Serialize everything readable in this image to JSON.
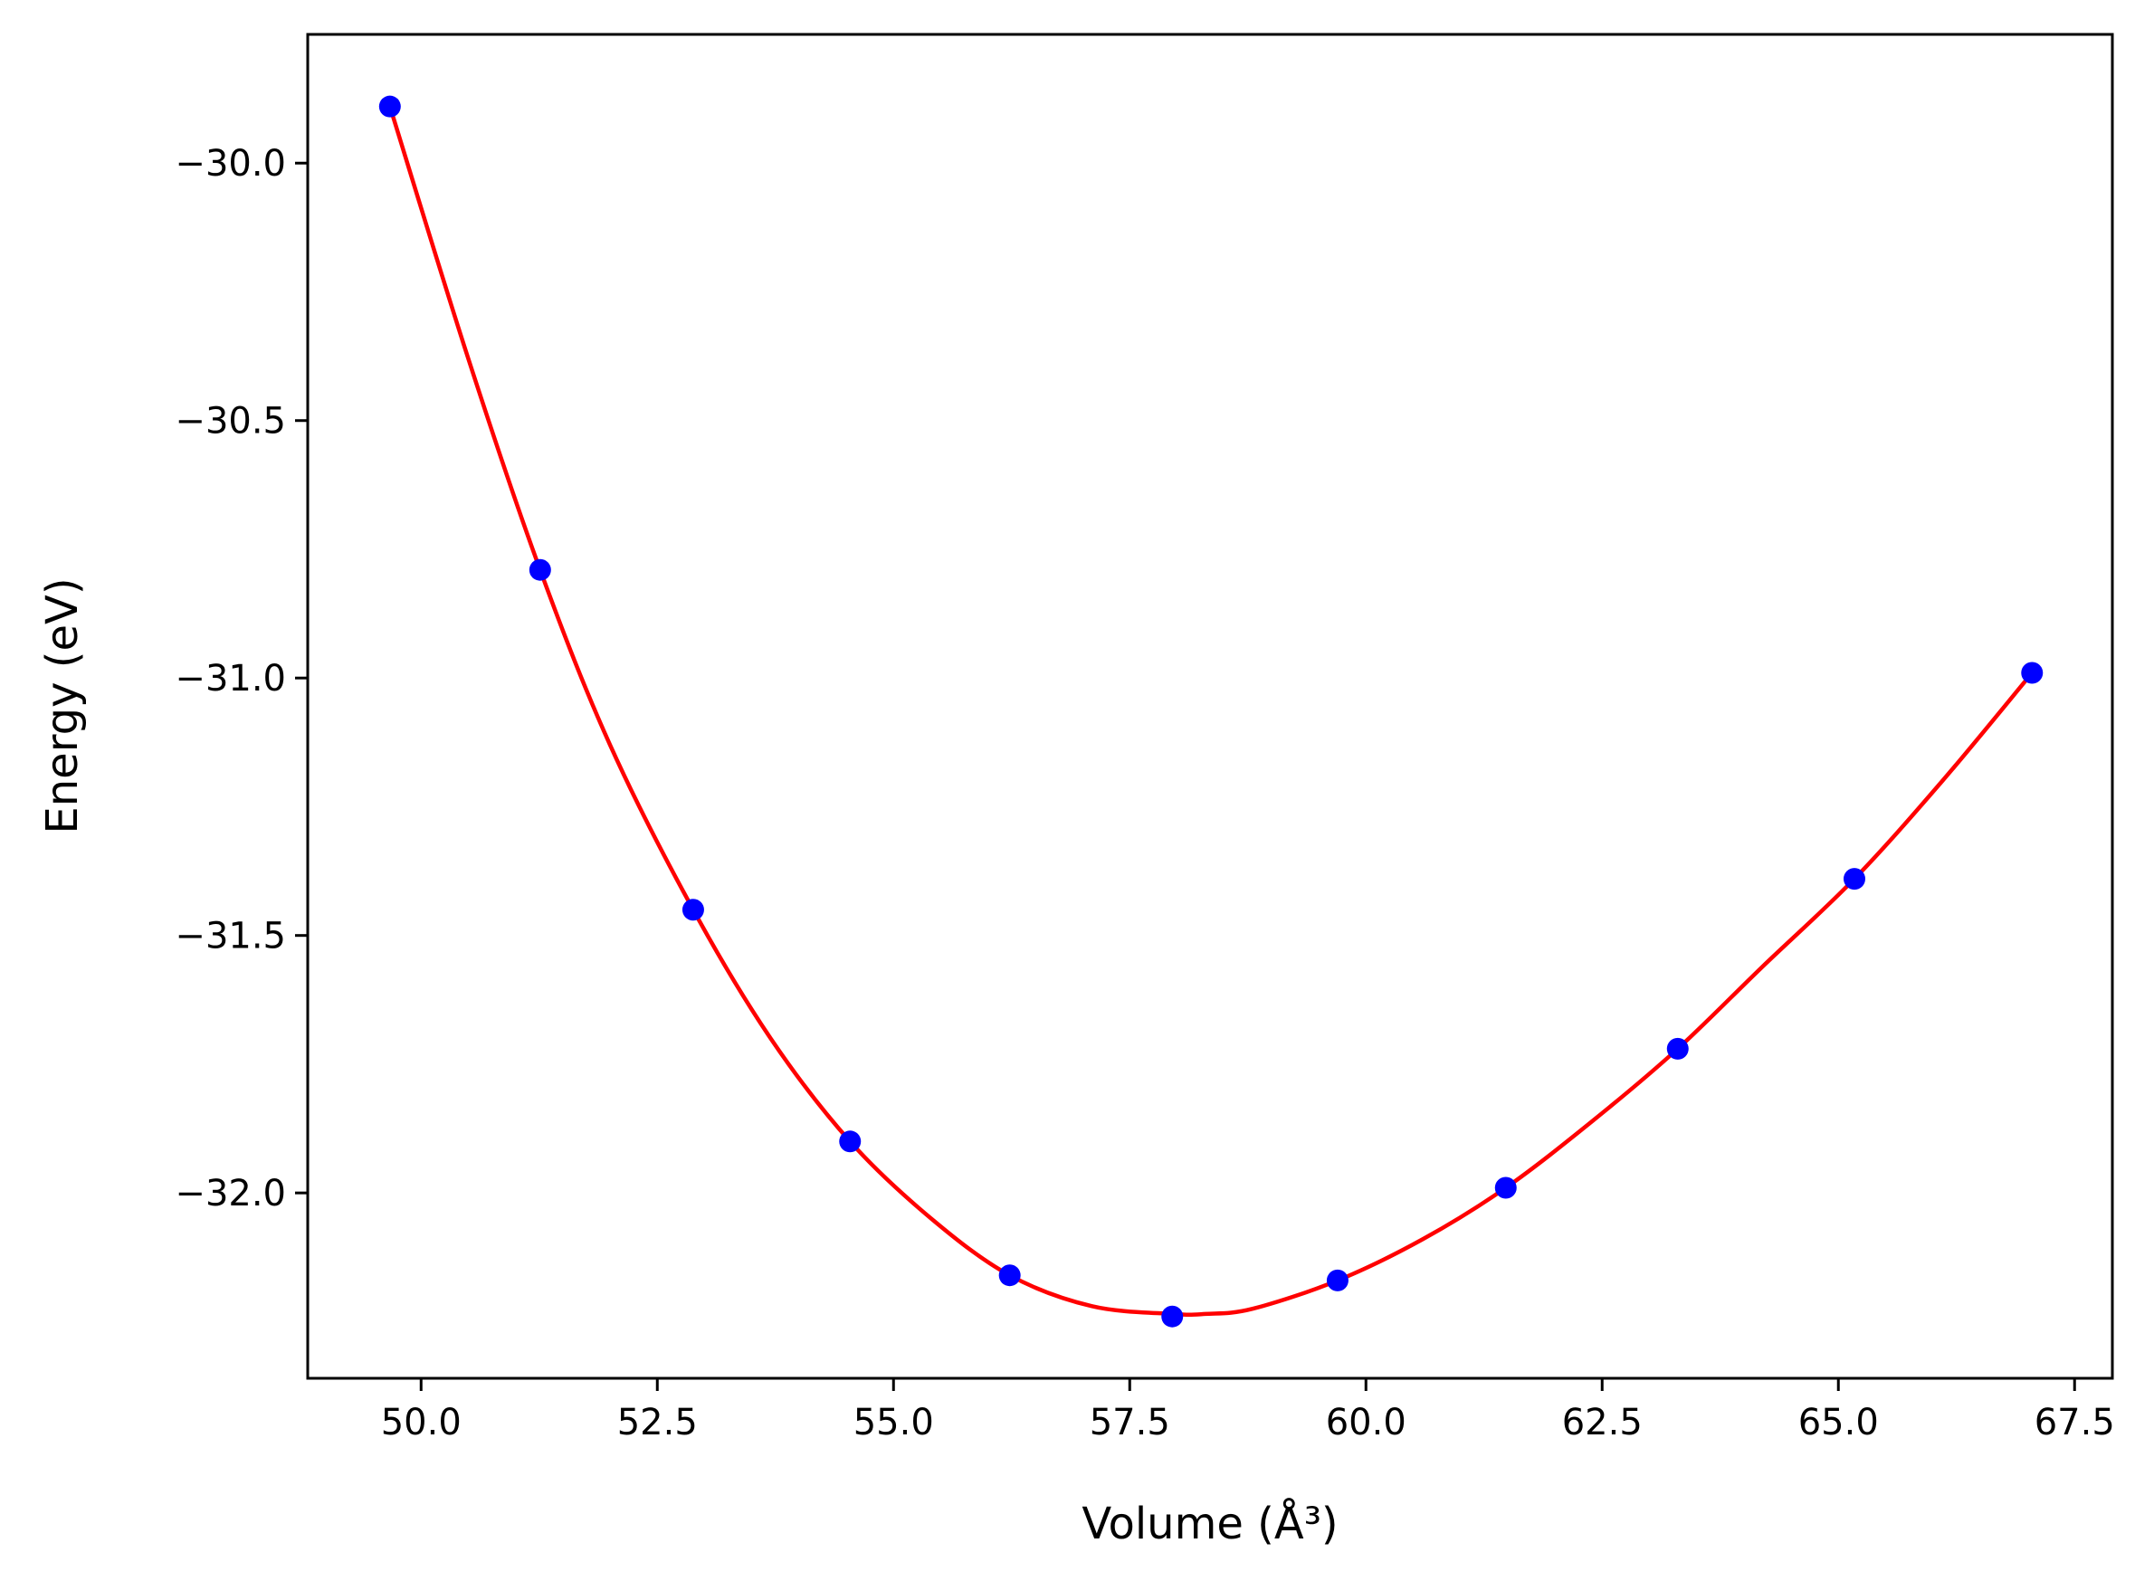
{
  "chart_data": {
    "type": "scatter",
    "xlabel": "Volume (Å³)",
    "ylabel": "Energy (eV)",
    "xlim": [
      48.8,
      67.9
    ],
    "ylim": [
      -32.36,
      -29.75
    ],
    "x_ticks": [
      50.0,
      52.5,
      55.0,
      57.5,
      60.0,
      62.5,
      65.0,
      67.5
    ],
    "x_tick_labels": [
      "50.0",
      "52.5",
      "55.0",
      "57.5",
      "60.0",
      "62.5",
      "65.0",
      "67.5"
    ],
    "y_ticks": [
      -30.0,
      -30.5,
      -31.0,
      -31.5,
      -32.0
    ],
    "y_tick_labels": [
      "−30.0",
      "−30.5",
      "−31.0",
      "−31.5",
      "−32.0"
    ],
    "grid": false,
    "series": [
      {
        "kind": "points",
        "color": "#0000ff",
        "x": [
          49.67,
          51.26,
          52.88,
          54.54,
          56.23,
          57.95,
          59.7,
          61.48,
          63.3,
          65.17,
          67.05
        ],
        "y": [
          -29.89,
          -30.79,
          -31.45,
          -31.9,
          -32.16,
          -32.24,
          -32.17,
          -31.99,
          -31.72,
          -31.39,
          -30.99
        ]
      },
      {
        "kind": "fit-curve",
        "color": "#ff0000",
        "x": [
          49.67,
          50.5,
          51.26,
          52.0,
          52.88,
          53.7,
          54.54,
          55.4,
          56.23,
          57.1,
          57.95,
          58.3,
          58.8,
          59.7,
          60.6,
          61.48,
          62.4,
          63.3,
          64.2,
          65.17,
          66.1,
          67.05
        ],
        "y": [
          -29.89,
          -30.38,
          -30.79,
          -31.13,
          -31.45,
          -31.7,
          -31.9,
          -32.05,
          -32.16,
          -32.22,
          -32.235,
          -32.235,
          -32.225,
          -32.17,
          -32.09,
          -31.99,
          -31.86,
          -31.72,
          -31.56,
          -31.39,
          -31.2,
          -30.99
        ]
      }
    ]
  }
}
